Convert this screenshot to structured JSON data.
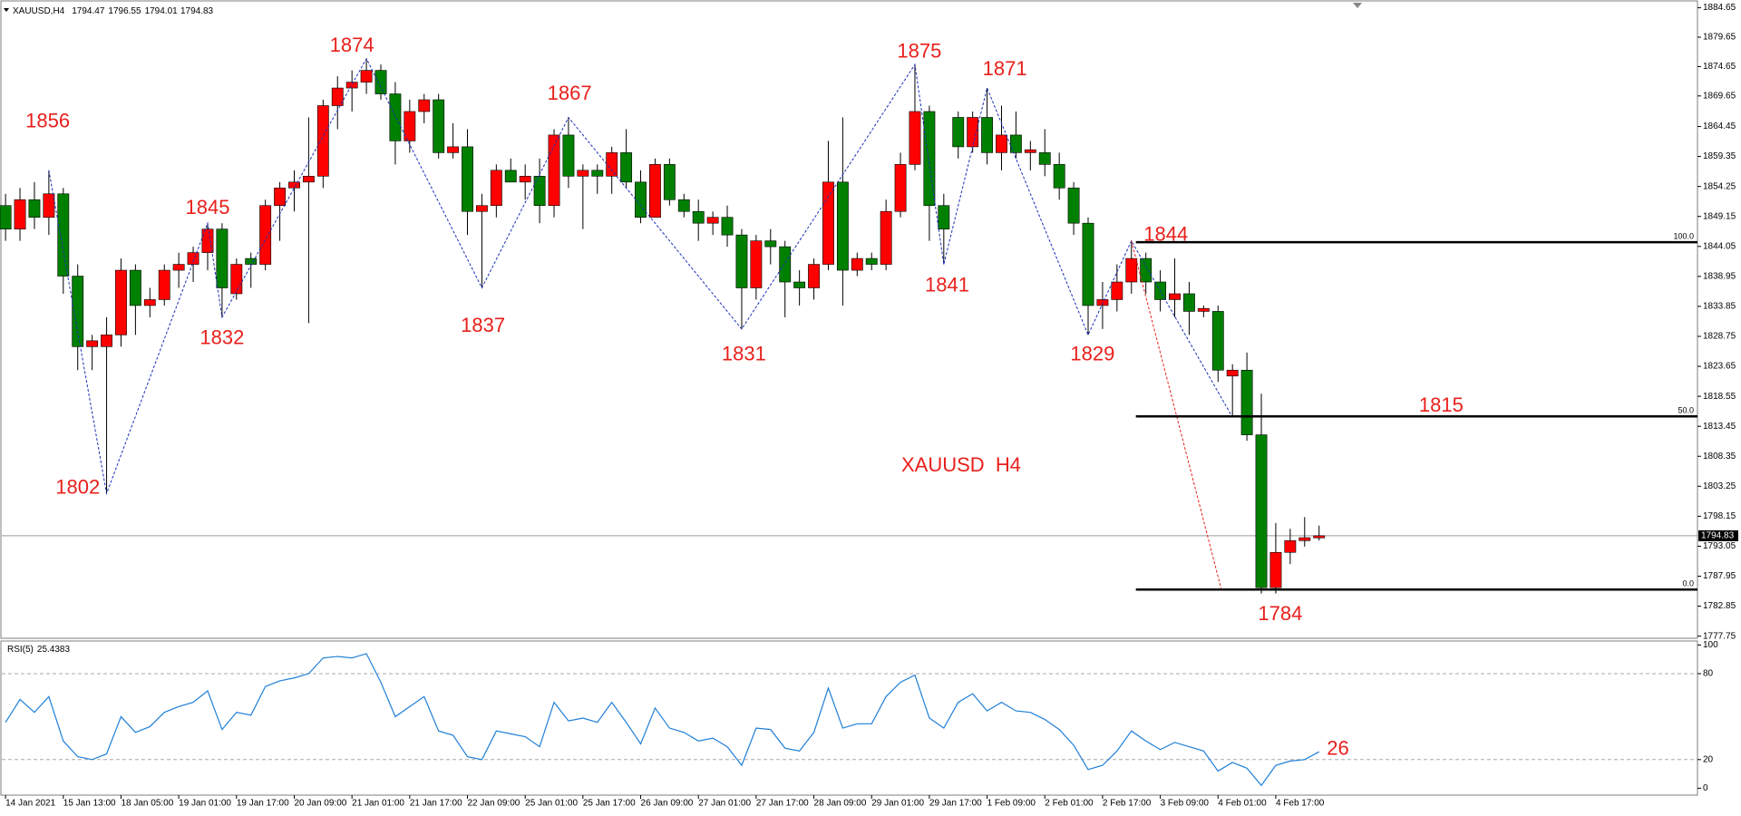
{
  "chart_data": {
    "type": "candlestick",
    "title": "XAUUSD,H4",
    "watermark": "XAUUSD  H4",
    "bull_color": "#ff0000",
    "bear_color": "#008000",
    "categories": [
      "14 Jan 2021",
      null,
      null,
      null,
      "15 Jan 13:00",
      null,
      null,
      null,
      "18 Jan 05:00",
      null,
      null,
      null,
      "19 Jan 01:00",
      null,
      null,
      null,
      "19 Jan 17:00",
      null,
      null,
      null,
      "20 Jan 09:00",
      null,
      null,
      null,
      "21 Jan 01:00",
      null,
      null,
      null,
      "21 Jan 17:00",
      null,
      null,
      null,
      "22 Jan 09:00",
      null,
      null,
      null,
      "25 Jan 01:00",
      null,
      null,
      null,
      "25 Jan 17:00",
      null,
      null,
      null,
      "26 Jan 09:00",
      null,
      null,
      null,
      "27 Jan 01:00",
      null,
      null,
      null,
      "27 Jan 17:00",
      null,
      null,
      null,
      "28 Jan 09:00",
      null,
      null,
      null,
      "29 Jan 01:00",
      null,
      null,
      null,
      "29 Jan 17:00",
      null,
      null,
      null,
      "1 Feb 09:00",
      null,
      null,
      null,
      "2 Feb 01:00",
      null,
      null,
      null,
      "2 Feb 17:00",
      null,
      null,
      null,
      "3 Feb 09:00",
      null,
      null,
      null,
      "4 Feb 01:00",
      null,
      null,
      null,
      "4 Feb 17:00",
      null,
      null,
      null
    ],
    "open": [
      1851,
      1847,
      1852,
      1849,
      1853,
      1839,
      1827,
      1827,
      1829,
      1840,
      1834,
      1835,
      1840,
      1841,
      1843,
      1847,
      1836,
      1842,
      1841,
      1851,
      1854,
      1855,
      1856,
      1868,
      1871,
      1872,
      1874,
      1870,
      1862,
      1867,
      1869,
      1860,
      1861,
      1850,
      1851,
      1857,
      1855,
      1856,
      1851,
      1863,
      1856,
      1857,
      1856,
      1860,
      1855,
      1849,
      1858,
      1852,
      1850,
      1848,
      1849,
      1846,
      1837,
      1845,
      1844,
      1838,
      1837,
      1841,
      1855,
      1840,
      1842,
      1841,
      1850,
      1858,
      1867,
      1851,
      1866,
      1861,
      1866,
      1860,
      1863,
      1860,
      1860,
      1858,
      1854,
      1848,
      1834,
      1835,
      1838,
      1842,
      1838,
      1835,
      1836,
      1833,
      1833,
      1822,
      1823,
      1812,
      1786,
      1792,
      1794,
      1794.47
    ],
    "high": [
      1853,
      1854,
      1855,
      1857,
      1854,
      1841,
      1829,
      1832,
      1842,
      1841,
      1837,
      1841,
      1843,
      1844,
      1848,
      1848,
      1842,
      1843,
      1852,
      1855,
      1857,
      1866,
      1869,
      1873,
      1874,
      1876,
      1875,
      1872,
      1869,
      1870,
      1870,
      1865,
      1864,
      1853,
      1858,
      1859,
      1858,
      1859,
      1864,
      1866,
      1858,
      1858,
      1861,
      1864,
      1857,
      1859,
      1859,
      1853,
      1852,
      1850,
      1851,
      1847,
      1846,
      1847,
      1845,
      1840,
      1842,
      1862,
      1866,
      1843,
      1843,
      1852,
      1860,
      1875,
      1868,
      1853,
      1867,
      1867,
      1871,
      1868,
      1867,
      1862,
      1864,
      1860,
      1855,
      1849,
      1838,
      1841,
      1845,
      1843,
      1840,
      1842,
      1838,
      1834,
      1834,
      1824,
      1826,
      1819,
      1797,
      1796,
      1798,
      1796.55
    ],
    "low": [
      1845,
      1845,
      1847,
      1846,
      1836,
      1823,
      1823,
      1802,
      1827,
      1829,
      1832,
      1834,
      1837,
      1838,
      1840,
      1832,
      1835,
      1837,
      1840,
      1845,
      1850,
      1831,
      1854,
      1864,
      1867,
      1870,
      1869,
      1858,
      1860,
      1865,
      1859,
      1859,
      1846,
      1837,
      1849,
      1855,
      1852,
      1848,
      1849,
      1854,
      1847,
      1853,
      1853,
      1854,
      1848,
      1849,
      1851,
      1849,
      1845,
      1846,
      1844,
      1830,
      1835,
      1841,
      1832,
      1834,
      1835,
      1840,
      1834,
      1839,
      1840,
      1840,
      1849,
      1857,
      1845,
      1841,
      1859,
      1860,
      1858,
      1857,
      1859,
      1857,
      1856,
      1852,
      1846,
      1829,
      1830,
      1833,
      1836,
      1836,
      1833,
      1832,
      1829,
      1832,
      1821,
      1815,
      1811,
      1785,
      1785,
      1790,
      1793,
      1794.01
    ],
    "close": [
      1847,
      1852,
      1849,
      1853,
      1839,
      1827,
      1828,
      1829,
      1840,
      1834,
      1835,
      1840,
      1841,
      1843,
      1847,
      1837,
      1841,
      1841,
      1851,
      1854,
      1855,
      1856,
      1868,
      1871,
      1872,
      1874,
      1870,
      1862,
      1867,
      1869,
      1860,
      1861,
      1850,
      1851,
      1857,
      1855,
      1856,
      1851,
      1863,
      1856,
      1857,
      1856,
      1860,
      1855,
      1849,
      1858,
      1852,
      1850,
      1848,
      1849,
      1846,
      1837,
      1845,
      1844,
      1838,
      1837,
      1841,
      1855,
      1840,
      1842,
      1841,
      1850,
      1858,
      1867,
      1851,
      1847,
      1861,
      1866,
      1860,
      1863,
      1860,
      1860.5,
      1858,
      1854,
      1848,
      1834,
      1835,
      1838,
      1842,
      1838,
      1835,
      1836,
      1833,
      1833.5,
      1823,
      1823,
      1812,
      1786,
      1792,
      1794,
      1794.5,
      1794.83
    ],
    "ylim": [
      1777.75,
      1884.65
    ],
    "yticks": [
      1884.65,
      1879.65,
      1874.65,
      1869.65,
      1864.45,
      1859.35,
      1854.25,
      1849.15,
      1844.05,
      1838.95,
      1833.85,
      1828.75,
      1823.65,
      1818.55,
      1813.45,
      1808.35,
      1803.25,
      1798.15,
      1793.05,
      1787.95,
      1782.85,
      1777.75
    ],
    "fib_levels": [
      {
        "price": 1844.77,
        "label": "100.0"
      },
      {
        "price": 1815.13,
        "label": "50.0"
      },
      {
        "price": 1785.68,
        "label": "0.0"
      }
    ],
    "annotations": [
      "1856",
      "1874",
      "1845",
      "1832",
      "1802",
      "1837",
      "1867",
      "1831",
      "1875",
      "1841",
      "1871",
      "1829",
      "1844",
      "1815",
      "1784",
      "26"
    ],
    "rsi": {
      "label": "RSI(5)",
      "color": "#1e7fd8",
      "values": [
        46,
        62,
        53,
        64,
        33,
        22,
        20,
        24,
        50,
        39,
        43,
        53,
        57,
        60,
        68,
        41,
        53,
        51,
        71,
        75,
        77,
        80,
        91,
        92,
        91,
        94,
        74,
        50,
        57,
        64,
        40,
        37,
        22,
        20,
        40,
        38,
        36,
        29,
        60,
        47,
        49,
        46,
        60,
        46,
        31,
        56,
        42,
        39,
        33,
        35,
        29,
        16,
        42,
        41,
        28,
        26,
        39,
        70,
        42,
        45,
        45,
        64,
        74,
        79,
        49,
        42,
        60,
        66,
        54,
        60,
        54,
        53,
        48,
        41,
        30,
        13,
        16,
        26,
        40,
        33,
        27,
        32,
        29,
        26,
        12,
        18,
        14,
        2,
        16,
        19,
        20,
        25.4383
      ],
      "ylim": [
        0,
        100
      ],
      "yticks": [
        100,
        80,
        20,
        0
      ],
      "levels": [
        80,
        20
      ]
    }
  }
}
